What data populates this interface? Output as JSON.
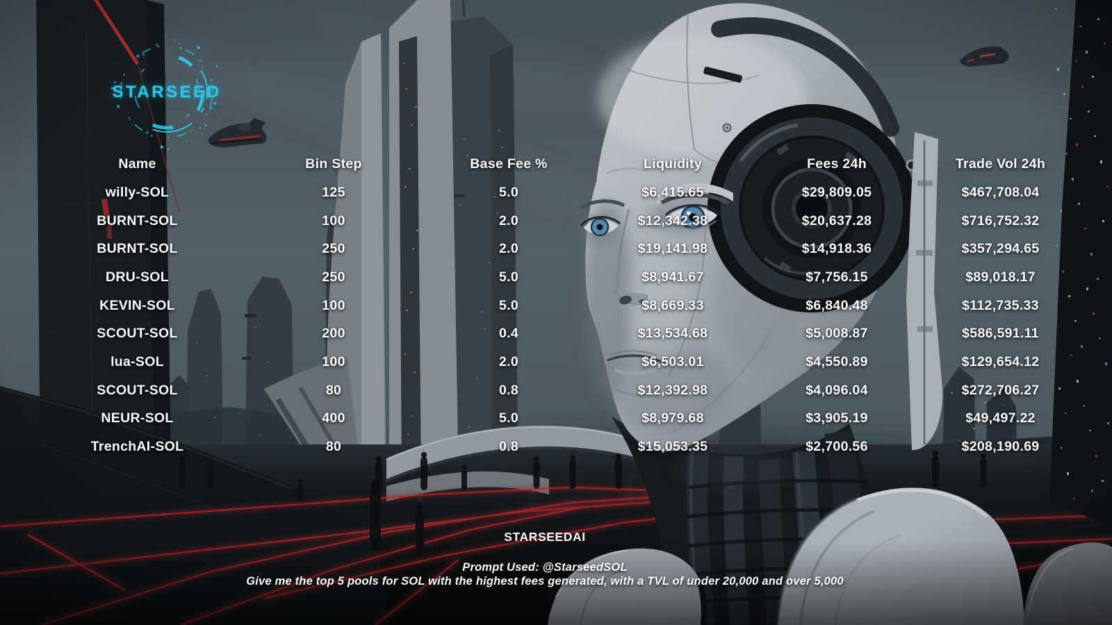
{
  "logo": {
    "text": "STARSEED"
  },
  "table": {
    "columns": [
      "Name",
      "Bin Step",
      "Base Fee %",
      "Liquidity",
      "Fees 24h",
      "Trade Vol 24h"
    ],
    "rows": [
      [
        "willy-SOL",
        "125",
        "5.0",
        "$6,415.65",
        "$29,809.05",
        "$467,708.04"
      ],
      [
        "BURNT-SOL",
        "100",
        "2.0",
        "$12,342.38",
        "$20,637.28",
        "$716,752.32"
      ],
      [
        "BURNT-SOL",
        "250",
        "2.0",
        "$19,141.98",
        "$14,918.36",
        "$357,294.65"
      ],
      [
        "DRU-SOL",
        "250",
        "5.0",
        "$8,941.67",
        "$7,756.15",
        "$89,018.17"
      ],
      [
        "KEVIN-SOL",
        "100",
        "5.0",
        "$8,669.33",
        "$6,840.48",
        "$112,735.33"
      ],
      [
        "SCOUT-SOL",
        "200",
        "0.4",
        "$13,534.68",
        "$5,008.87",
        "$586,591.11"
      ],
      [
        "lua-SOL",
        "100",
        "2.0",
        "$6,503.01",
        "$4,550.89",
        "$129,654.12"
      ],
      [
        "SCOUT-SOL",
        "80",
        "0.8",
        "$12,392.98",
        "$4,096.04",
        "$272,706.27"
      ],
      [
        "NEUR-SOL",
        "400",
        "5.0",
        "$8,979.68",
        "$3,905.19",
        "$49,497.22"
      ],
      [
        "TrenchAI-SOL",
        "80",
        "0.8",
        "$15,053.35",
        "$2,700.56",
        "$208,190.69"
      ]
    ]
  },
  "footer": {
    "brand": "STARSEEDAI",
    "prompt_label": "Prompt Used: @StarseedSOL",
    "prompt_text": "Give me the top 5 pools for SOL with the highest fees generated, with a TVL of under 20,000 and over 5,000"
  },
  "colors": {
    "accent_cyan": "#2BC7E7",
    "accent_red": "#B7292E",
    "text": "#FFFFFF",
    "sky": "#55636C",
    "ground": "#0B0D0F"
  }
}
